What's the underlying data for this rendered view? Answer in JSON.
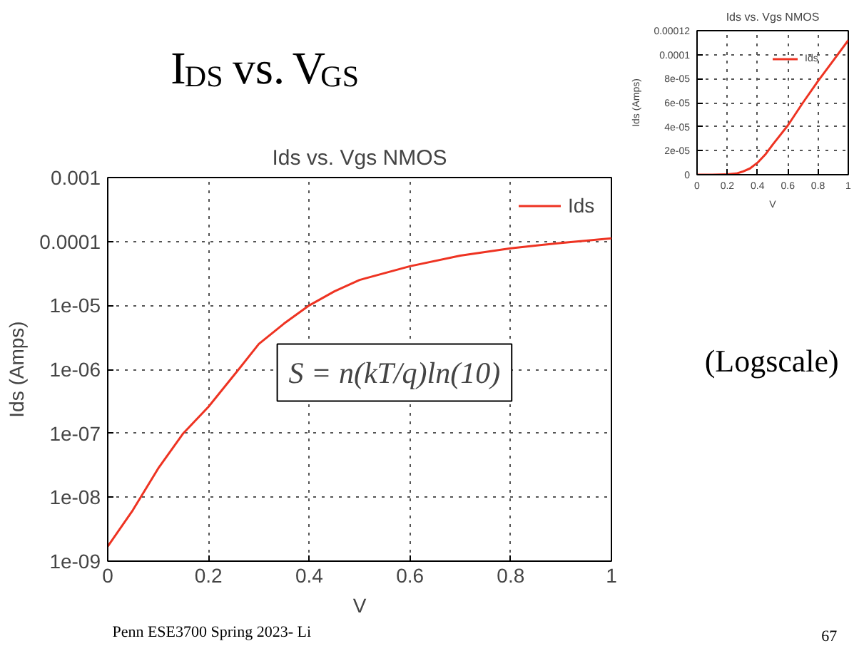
{
  "chart_data": [
    {
      "type": "other",
      "title": "I$_{DS}$ vs. V$_{GS}$",
      "annotations": [
        "(Logscale)",
        "Penn ESE3700 Spring 2023- Li",
        "67"
      ]
    },
    {
      "type": "line",
      "title": "Ids vs. Vgs NMOS",
      "xlabel": "V",
      "ylabel": "Ids (Amps)",
      "x": [
        0,
        0.05,
        0.1,
        0.15,
        0.2,
        0.26,
        0.3,
        0.35,
        0.4,
        0.45,
        0.5,
        0.6,
        0.7,
        0.8,
        0.9,
        1.0
      ],
      "series": [
        {
          "name": "Ids",
          "color": "#ee3322",
          "values": [
            1.7e-09,
            6.3e-09,
            2.8e-08,
            1e-07,
            2.6e-07,
            1e-06,
            2.5e-06,
            5.2e-06,
            1e-05,
            1.66e-05,
            2.5e-05,
            4.1e-05,
            6e-05,
            7.8e-05,
            9.5e-05,
            0.000112
          ]
        }
      ],
      "xlim": [
        0,
        1
      ],
      "xticks": [
        0,
        0.2,
        0.4,
        0.6,
        0.8,
        1
      ],
      "ylim": [
        0,
        0.00012
      ],
      "yticks": [
        0,
        {
          "value": 2e-05,
          "label": "2e-05"
        },
        {
          "value": 4e-05,
          "label": "4e-05"
        },
        {
          "value": 6e-05,
          "label": "6e-05"
        },
        {
          "value": 8e-05,
          "label": "8e-05"
        },
        {
          "value": 0.0001,
          "label": "0.0001"
        },
        {
          "value": 0.00012,
          "label": "0.00012"
        }
      ],
      "grid": true,
      "legend": "top right"
    },
    {
      "type": "line",
      "title": "Ids vs. Vgs NMOS",
      "xlabel": "V",
      "ylabel": "Ids (Amps)",
      "log": "y",
      "x": [
        0,
        0.05,
        0.1,
        0.15,
        0.2,
        0.26,
        0.3,
        0.35,
        0.4,
        0.45,
        0.5,
        0.6,
        0.7,
        0.8,
        0.9,
        1.0
      ],
      "series": [
        {
          "name": "Ids",
          "color": "#ee3322",
          "values": [
            1.7e-09,
            6.3e-09,
            2.8e-08,
            1e-07,
            2.6e-07,
            1e-06,
            2.5e-06,
            5.2e-06,
            1e-05,
            1.66e-05,
            2.5e-05,
            4.1e-05,
            6e-05,
            7.8e-05,
            9.5e-05,
            0.000112
          ]
        }
      ],
      "xlim": [
        0,
        1
      ],
      "xticks": [
        0,
        0.2,
        0.4,
        0.6,
        0.8,
        1
      ],
      "ylim": [
        1e-09,
        0.001
      ],
      "yticks": [
        {
          "value": 1e-09,
          "label": "1e-09"
        },
        {
          "value": 1e-08,
          "label": "1e-08"
        },
        {
          "value": 1e-07,
          "label": "1e-07"
        },
        {
          "value": 1e-06,
          "label": "1e-06"
        },
        {
          "value": 1e-05,
          "label": "1e-05"
        },
        {
          "value": 0.0001,
          "label": "0.0001"
        },
        {
          "value": 0.001,
          "label": "0.001"
        }
      ],
      "grid": true,
      "legend": "top right",
      "annotations": [
        "S = n(kT/q)ln(10)"
      ]
    }
  ]
}
